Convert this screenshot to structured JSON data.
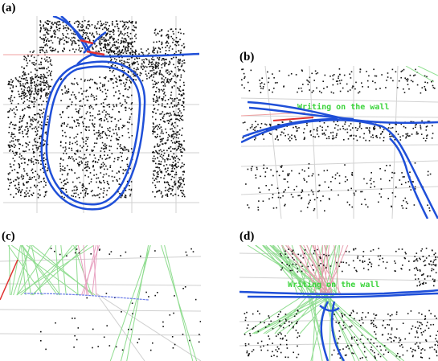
{
  "panels": {
    "a": {
      "label": "(a)"
    },
    "b": {
      "label": "(b)",
      "annotation": "Writing on the wall"
    },
    "c": {
      "label": "(c)"
    },
    "d": {
      "label": "(d)",
      "annotation": "Writing on the wall"
    }
  },
  "colors": {
    "trajectory": "#1f4fd8",
    "grid": "#c8c8c8",
    "points": "#111111",
    "green_rays": "#7fdc7f",
    "pink_rays": "#e8a0a8",
    "red": "#e03030",
    "annotation": "#3cd43c"
  }
}
